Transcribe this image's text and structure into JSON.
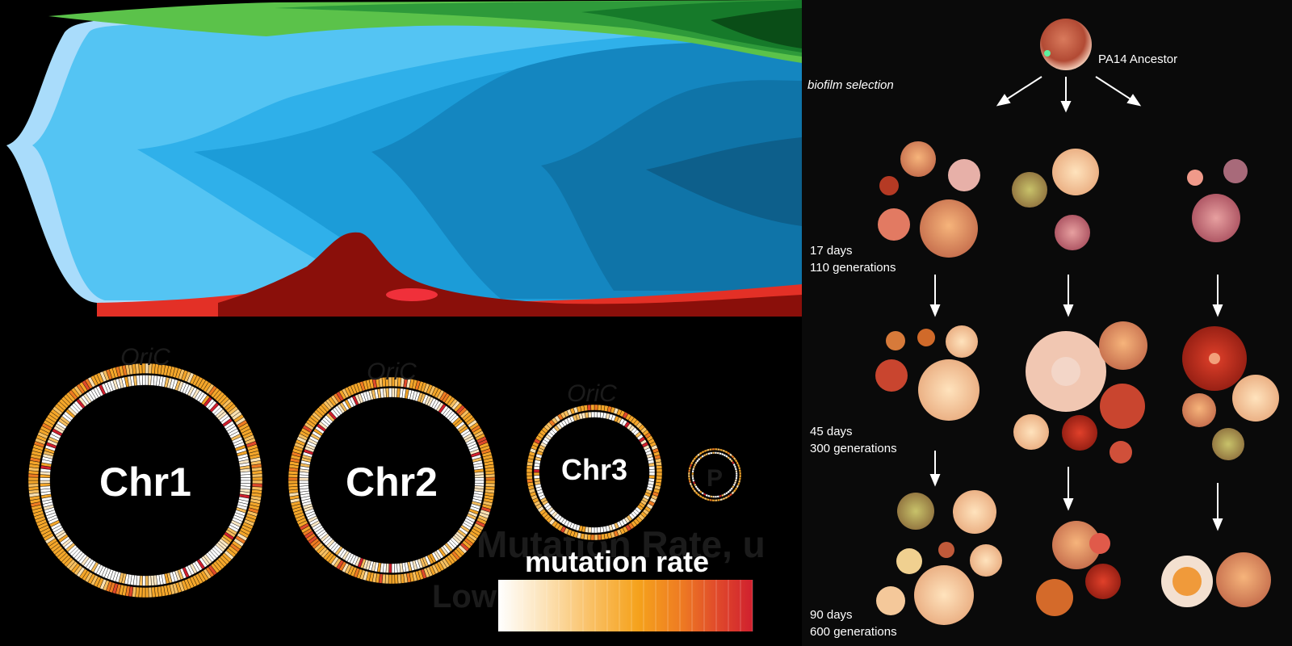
{
  "chromosomes": [
    {
      "name": "Chr1",
      "origin_label": "OriC"
    },
    {
      "name": "Chr2",
      "origin_label": "OriC"
    },
    {
      "name": "Chr3",
      "origin_label": "OriC"
    },
    {
      "name": "P",
      "origin_label": ""
    }
  ],
  "legend": {
    "title": "mutation rate",
    "ghost_title": "Mutation Rate, u",
    "ghost_low": "Low",
    "colors": [
      "#ffffff",
      "#fce3b8",
      "#f9c06a",
      "#f5a21c",
      "#ee7b22",
      "#e04a2b",
      "#d0202e"
    ]
  },
  "evolution": {
    "ancestor_label": "PA14 Ancestor",
    "selection_label": "biofilm selection",
    "stages": [
      {
        "days": "17 days",
        "generations": "110 generations"
      },
      {
        "days": "45 days",
        "generations": "300 generations"
      },
      {
        "days": "90 days",
        "generations": "600 generations"
      }
    ]
  },
  "colors": {
    "ring_base": "#f3a12a",
    "light_blue": "#8fd3f8",
    "mid_blue": "#4fc3f2",
    "deep_blue": "#0d5f8b",
    "green": "#3ea83c",
    "dark_green": "#0a4d17",
    "red": "#e33026",
    "dark_red": "#8a0f0a"
  }
}
